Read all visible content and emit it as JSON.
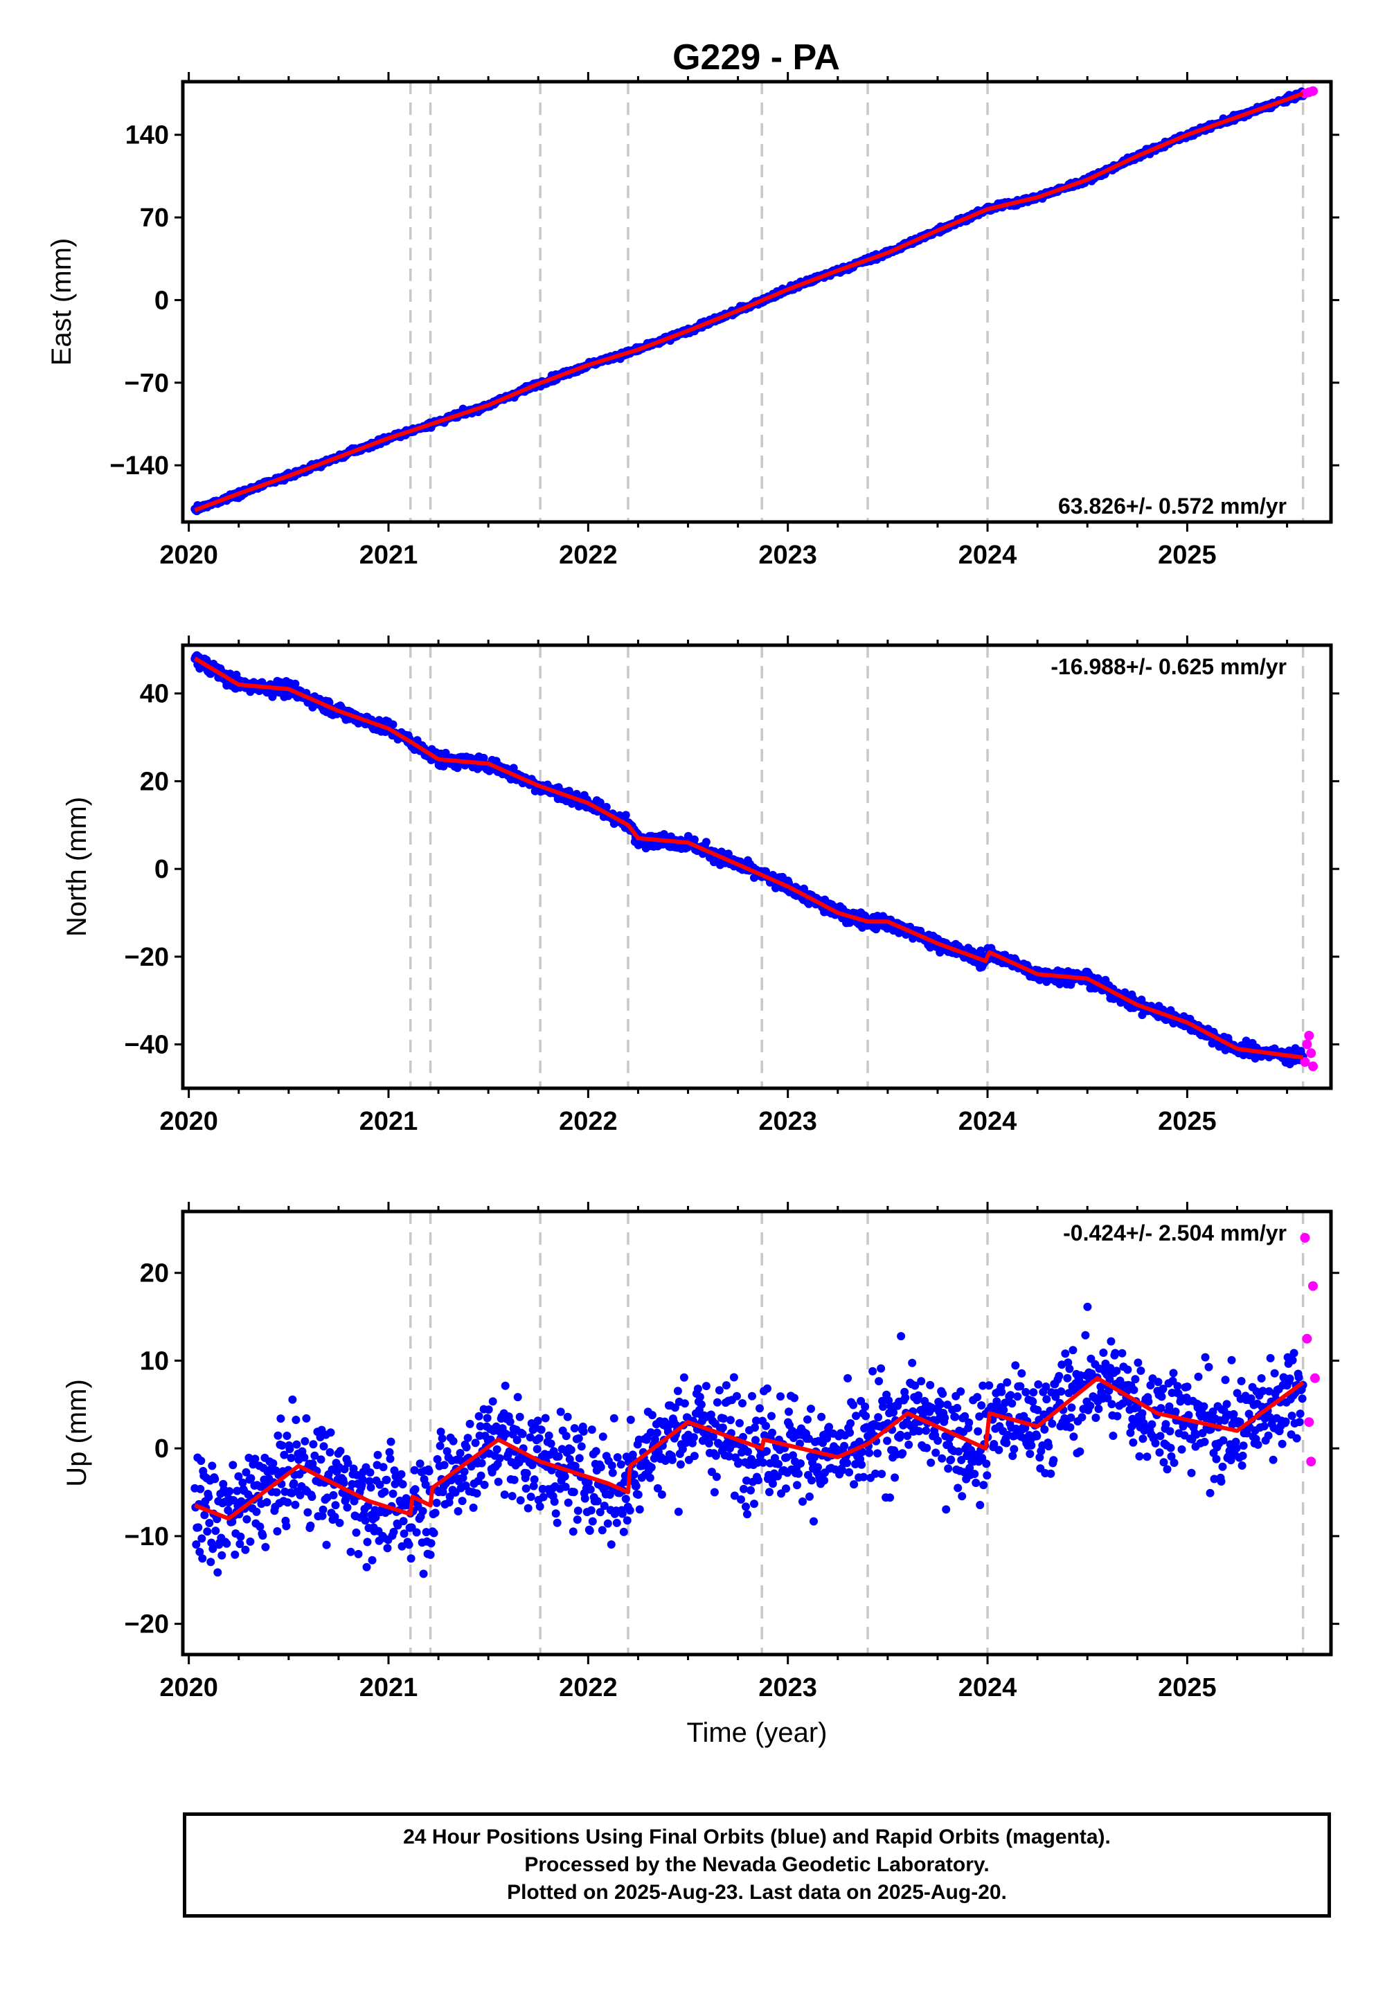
{
  "title": "G229 - PA",
  "colors": {
    "final": "#0000ff",
    "rapid": "#ff00ff",
    "model": "#ff0000",
    "breaks": "#c8c8c8"
  },
  "x_axis_label": "Time (year)",
  "break_years": [
    2021.11,
    2021.21,
    2021.76,
    2022.2,
    2022.87,
    2023.4,
    2024.0,
    2025.58
  ],
  "panels": [
    {
      "axis_label": "East (mm)",
      "rate": "63.826+/- 0.572 mm/yr",
      "rate_position": "bottom-right",
      "xlim": [
        2019.97,
        2025.72
      ],
      "ylim": [
        -188,
        185
      ],
      "yticks": [
        140,
        70,
        0,
        -70,
        -140
      ],
      "ytick_labels": [
        "140",
        "70",
        "0",
        "−70",
        "−140"
      ],
      "xtick_labels": [
        "2020",
        "2021",
        "2022",
        "2023",
        "2024",
        "2025"
      ]
    },
    {
      "axis_label": "North (mm)",
      "rate": "-16.988+/- 0.625 mm/yr",
      "rate_position": "top-right",
      "xlim": [
        2019.97,
        2025.72
      ],
      "ylim": [
        -50,
        51
      ],
      "yticks": [
        40,
        20,
        0,
        -20,
        -40
      ],
      "ytick_labels": [
        "40",
        "20",
        "0",
        "−20",
        "−40"
      ],
      "xtick_labels": [
        "2020",
        "2021",
        "2022",
        "2023",
        "2024",
        "2025"
      ]
    },
    {
      "axis_label": "Up (mm)",
      "rate": "-0.424+/- 2.504 mm/yr",
      "rate_position": "top-right",
      "xlim": [
        2019.97,
        2025.72
      ],
      "ylim": [
        -23.5,
        27
      ],
      "yticks": [
        20,
        10,
        0,
        -10,
        -20
      ],
      "ytick_labels": [
        "20",
        "10",
        "0",
        "−10",
        "−20"
      ],
      "xtick_labels": [
        "2020",
        "2021",
        "2022",
        "2023",
        "2024",
        "2025"
      ]
    }
  ],
  "footer": {
    "line1": "24 Hour Positions Using Final Orbits (blue) and Rapid Orbits (magenta).",
    "line2": "Processed by the Nevada Geodetic Laboratory.",
    "line3": "Plotted on 2025-Aug-23. Last data on 2025-Aug-20."
  },
  "chart_data": [
    {
      "type": "scatter",
      "axis_label": "East (mm)",
      "xlim": [
        2019.97,
        2025.72
      ],
      "ylim": [
        -188,
        185
      ],
      "series": [
        {
          "name": "Final Orbits (blue)",
          "kind": "points",
          "x": [
            2020.03,
            2020.25,
            2020.5,
            2020.75,
            2021.0,
            2021.11,
            2021.25,
            2021.5,
            2021.75,
            2022.0,
            2022.25,
            2022.5,
            2022.75,
            2023.0,
            2023.25,
            2023.5,
            2023.75,
            2024.0,
            2024.25,
            2024.5,
            2024.75,
            2025.0,
            2025.25,
            2025.5,
            2025.58
          ],
          "y": [
            -178,
            -164,
            -149,
            -133,
            -117,
            -111,
            -103,
            -89,
            -71,
            -55,
            -42,
            -26,
            -9,
            9,
            25,
            40,
            59,
            77,
            87,
            102,
            122,
            140,
            155,
            170,
            175
          ]
        },
        {
          "name": "Rapid Orbits (magenta)",
          "kind": "points",
          "x": [
            2025.59,
            2025.61,
            2025.63
          ],
          "y": [
            175,
            176,
            177
          ]
        }
      ]
    },
    {
      "type": "scatter",
      "axis_label": "North (mm)",
      "xlim": [
        2019.97,
        2025.72
      ],
      "ylim": [
        -50,
        51
      ],
      "series": [
        {
          "name": "Final Orbits (blue)",
          "kind": "points",
          "x": [
            2020.03,
            2020.25,
            2020.5,
            2020.75,
            2021.0,
            2021.11,
            2021.25,
            2021.5,
            2021.75,
            2022.0,
            2022.2,
            2022.25,
            2022.5,
            2022.75,
            2023.0,
            2023.25,
            2023.4,
            2023.5,
            2023.75,
            2023.99,
            2024.01,
            2024.25,
            2024.5,
            2024.75,
            2025.0,
            2025.25,
            2025.58
          ],
          "y": [
            48,
            42,
            41,
            36,
            32,
            29,
            25,
            24,
            19,
            15,
            10,
            7,
            6,
            1,
            -4,
            -10,
            -12,
            -12,
            -17,
            -21,
            -19,
            -24,
            -25,
            -31,
            -35,
            -41,
            -43
          ]
        },
        {
          "name": "Rapid Orbits (magenta)",
          "kind": "points",
          "x": [
            2025.59,
            2025.6,
            2025.61,
            2025.62,
            2025.63
          ],
          "y": [
            -44,
            -40,
            -38,
            -42,
            -45
          ]
        }
      ]
    },
    {
      "type": "scatter",
      "axis_label": "Up (mm)",
      "xlim": [
        2019.97,
        2025.72
      ],
      "ylim": [
        -23.5,
        27
      ],
      "series": [
        {
          "name": "Final Orbits (blue)",
          "kind": "points",
          "x": [
            2020.03,
            2020.2,
            2020.55,
            2020.9,
            2021.11,
            2021.12,
            2021.21,
            2021.22,
            2021.55,
            2021.76,
            2022.1,
            2022.2,
            2022.21,
            2022.5,
            2022.87,
            2022.88,
            2023.25,
            2023.4,
            2023.6,
            2023.99,
            2024.01,
            2024.25,
            2024.55,
            2024.85,
            2025.25,
            2025.58
          ],
          "y": [
            -6.5,
            -8,
            -2,
            -6,
            -7.5,
            -5.5,
            -6.5,
            -4.5,
            1,
            -1.5,
            -4,
            -5,
            -2,
            3,
            0,
            1,
            -1,
            0.5,
            4,
            0,
            4,
            2.5,
            8,
            4,
            2,
            7.5
          ]
        },
        {
          "name": "Rapid Orbits (magenta)",
          "kind": "points",
          "x": [
            2025.59,
            2025.6,
            2025.61,
            2025.62,
            2025.63,
            2025.64
          ],
          "y": [
            24,
            12.5,
            3,
            -1.5,
            18.5,
            8
          ]
        }
      ]
    }
  ]
}
